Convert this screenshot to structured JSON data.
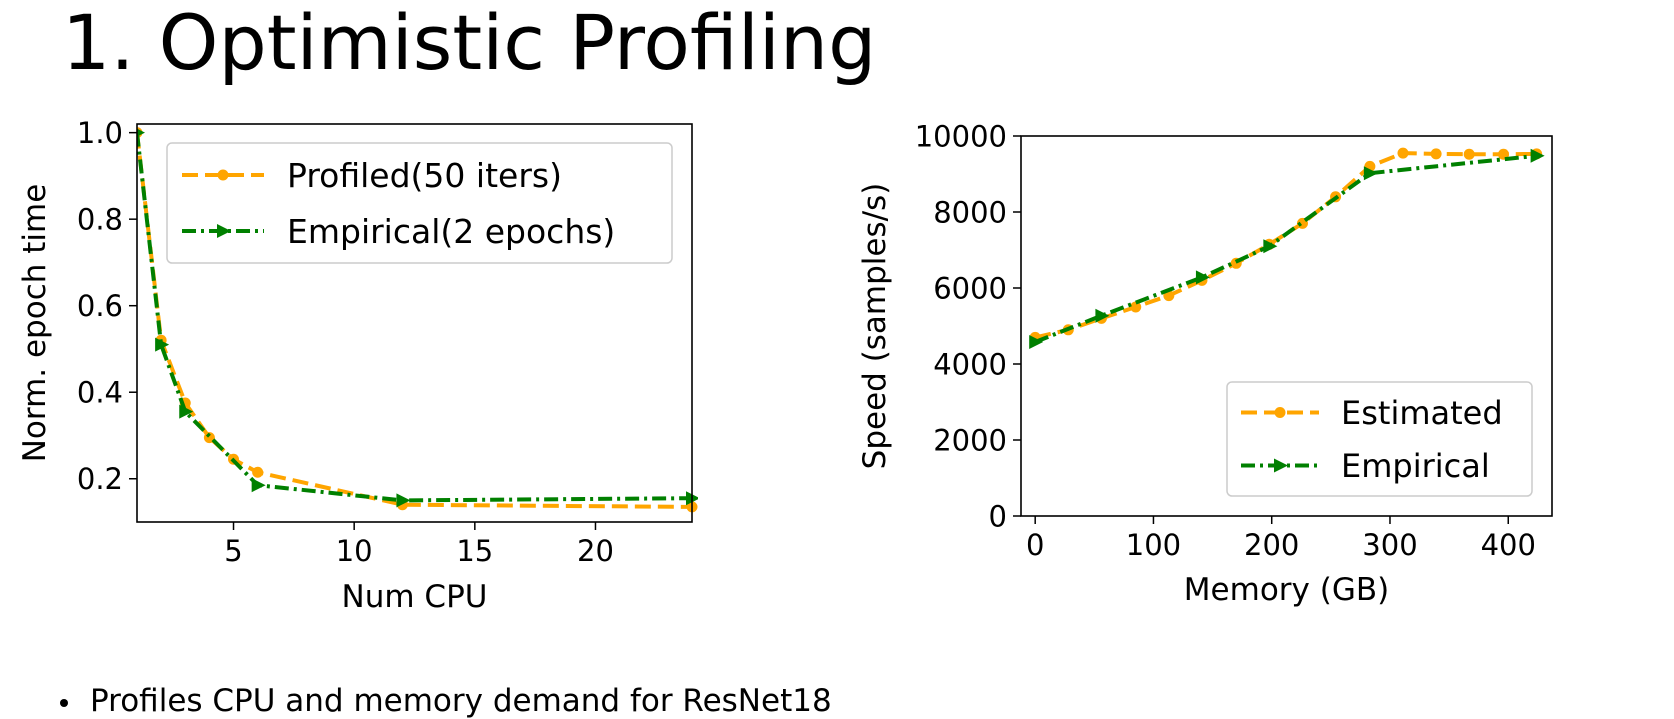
{
  "slide": {
    "title": "1. Optimistic Profiling",
    "bullet": "Profiles CPU and memory demand for ResNet18"
  },
  "chart_data": [
    {
      "type": "line",
      "xlabel": "Num CPU",
      "ylabel": "Norm. epoch time",
      "xlim": [
        1,
        24
      ],
      "ylim": [
        0.1,
        1.02
      ],
      "xticks": [
        5,
        10,
        15,
        20
      ],
      "yticks": [
        0.2,
        0.4,
        0.6,
        0.8,
        1.0
      ],
      "ytick_labels": [
        "0.2",
        "0.4",
        "0.6",
        "0.8",
        "1.0"
      ],
      "grid": false,
      "legend_position": "top-right",
      "series": [
        {
          "name": "Profiled(50 iters)",
          "color": "#ffa500",
          "line_style": "dashed",
          "marker": "circle",
          "x": [
            1,
            2,
            3,
            4,
            5,
            6,
            12,
            24
          ],
          "y": [
            1.0,
            0.52,
            0.375,
            0.295,
            0.245,
            0.215,
            0.14,
            0.135
          ]
        },
        {
          "name": "Empirical(2 epochs)",
          "color": "#008000",
          "line_style": "dashdot",
          "marker": "triangle-right",
          "x": [
            1,
            2,
            3,
            6,
            12,
            24
          ],
          "y": [
            1.0,
            0.51,
            0.355,
            0.185,
            0.15,
            0.155
          ]
        }
      ]
    },
    {
      "type": "line",
      "xlabel": "Memory (GB)",
      "ylabel": "Speed (samples/s)",
      "xlim": [
        -12,
        437
      ],
      "ylim": [
        0,
        10000
      ],
      "xticks": [
        0,
        100,
        200,
        300,
        400
      ],
      "yticks": [
        0,
        2000,
        4000,
        6000,
        8000,
        10000
      ],
      "grid": false,
      "legend_position": "bottom-right",
      "series": [
        {
          "name": "Estimated",
          "color": "#ffa500",
          "line_style": "dashed",
          "marker": "circle",
          "x": [
            0,
            28,
            56,
            85,
            113,
            141,
            170,
            198,
            226,
            254,
            283,
            311,
            339,
            367,
            396,
            424
          ],
          "y": [
            4700,
            4900,
            5200,
            5500,
            5800,
            6200,
            6650,
            7150,
            7700,
            8400,
            9200,
            9550,
            9530,
            9520,
            9520,
            9530
          ]
        },
        {
          "name": "Empirical",
          "color": "#008000",
          "line_style": "dashdot",
          "marker": "triangle-right",
          "x": [
            0,
            56,
            141,
            198,
            283,
            424
          ],
          "y": [
            4580,
            5270,
            6280,
            7100,
            9020,
            9480
          ]
        }
      ]
    }
  ]
}
